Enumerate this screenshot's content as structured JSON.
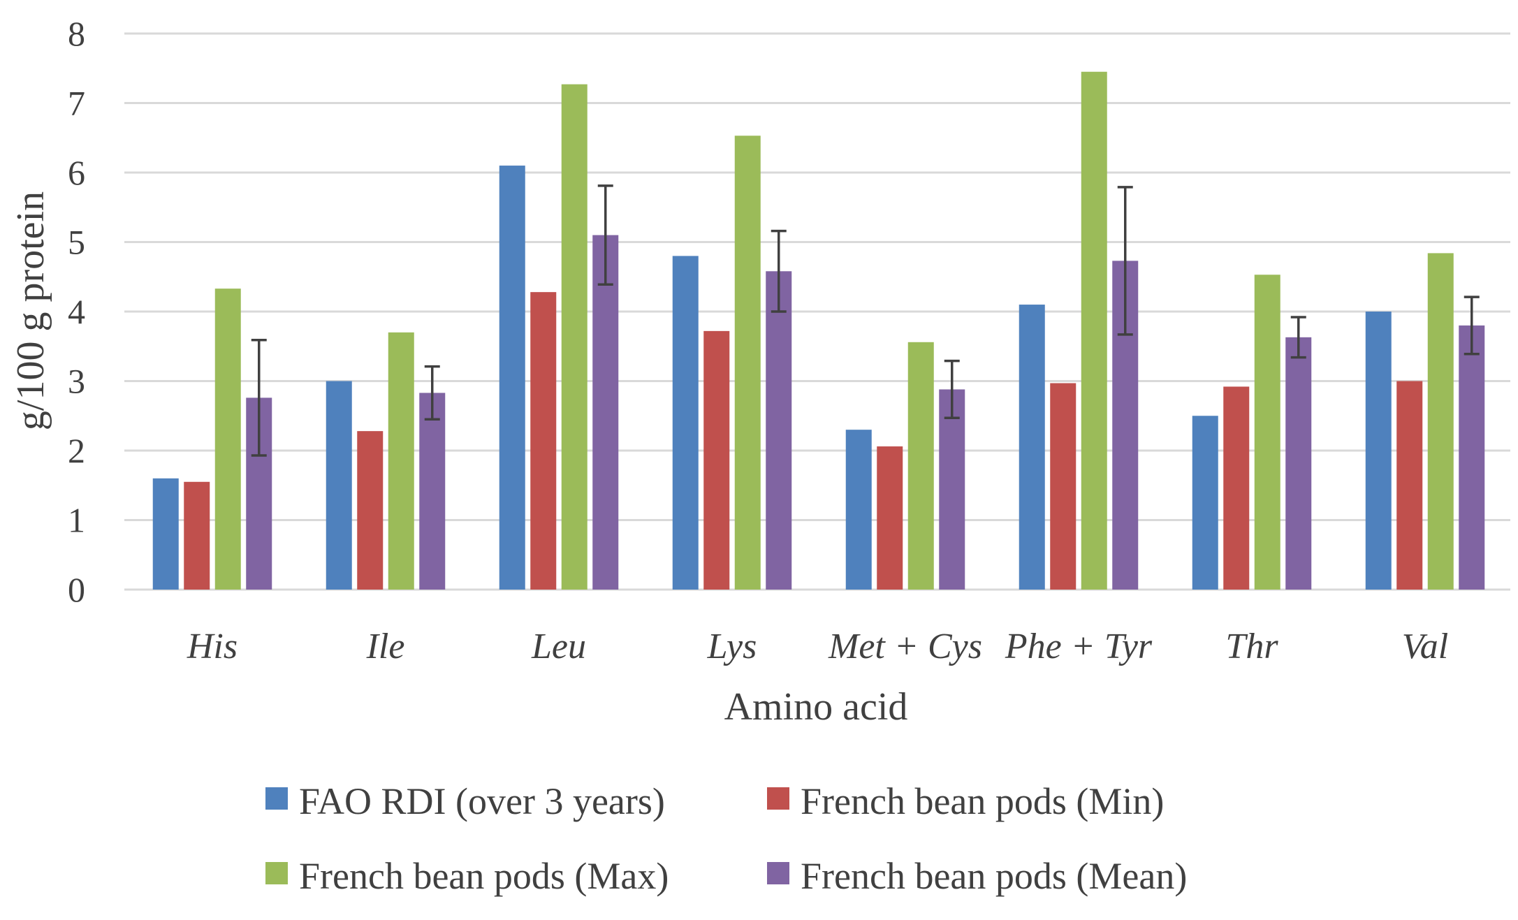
{
  "chart_data": {
    "type": "bar",
    "title": "",
    "xlabel": "Amino acid",
    "ylabel": "g/100 g protein",
    "ylim": [
      0,
      8
    ],
    "yticks": [
      "0",
      "1",
      "2",
      "3",
      "4",
      "5",
      "6",
      "7",
      "8"
    ],
    "grid": true,
    "legend_position": "bottom",
    "categories": [
      "His",
      "Ile",
      "Leu",
      "Lys",
      "Met + Cys",
      "Phe + Tyr",
      "Thr",
      "Val"
    ],
    "series": [
      {
        "name": "FAO RDI (over 3 years)",
        "color": "#4f81bd",
        "values": [
          1.6,
          3.0,
          6.1,
          4.8,
          2.3,
          4.1,
          2.5,
          4.0
        ]
      },
      {
        "name": "French bean pods (Min)",
        "color": "#c0504d",
        "values": [
          1.55,
          2.28,
          4.28,
          3.72,
          2.06,
          2.97,
          2.92,
          3.0
        ]
      },
      {
        "name": "French bean pods (Max)",
        "color": "#9bbb59",
        "values": [
          4.33,
          3.7,
          7.27,
          6.53,
          3.56,
          7.45,
          4.53,
          4.84
        ]
      },
      {
        "name": "French bean pods (Mean)",
        "color": "#8064a2",
        "values": [
          2.76,
          2.83,
          5.1,
          4.58,
          2.88,
          4.73,
          3.63,
          3.8
        ],
        "error": [
          0.83,
          0.38,
          0.71,
          0.58,
          0.41,
          1.06,
          0.29,
          0.41
        ]
      }
    ]
  }
}
